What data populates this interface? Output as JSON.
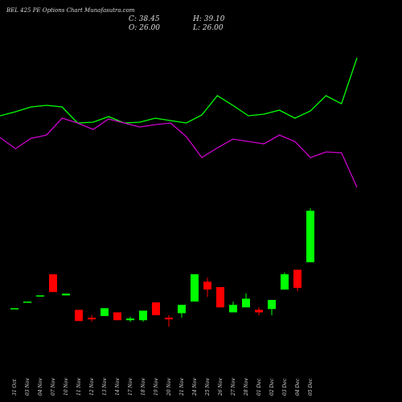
{
  "chart_data": {
    "type": "candlestick",
    "title": "BEL 425 PE Options Chart Munafasutra.com",
    "ohlc_labels": [
      "C: 38.45",
      "H: 39.10",
      "O: 26.00",
      "L: 26.00"
    ],
    "categories": [
      "31 Oct",
      "03 Nov",
      "04 Nov",
      "07 Nov",
      "10 Nov",
      "11 Nov",
      "12 Nov",
      "13 Nov",
      "14 Nov",
      "17 Nov",
      "18 Nov",
      "19 Nov",
      "20 Nov",
      "21 Nov",
      "24 Nov",
      "25 Nov",
      "26 Nov",
      "27 Nov",
      "28 Nov",
      "01 Dec",
      "02 Dec",
      "03 Dec",
      "04 Dec",
      "05 Dec"
    ],
    "open": [
      14.9,
      16.5,
      18.0,
      23.1,
      18.0,
      14.5,
      12.6,
      13.0,
      13.9,
      12.0,
      12.0,
      16.3,
      12.6,
      13.7,
      16.5,
      21.3,
      20.0,
      13.9,
      15.1,
      14.5,
      14.7,
      19.4,
      24.2,
      26.0
    ],
    "high": [
      14.9,
      16.5,
      18.0,
      23.1,
      18.4,
      14.5,
      13.2,
      14.9,
      13.9,
      12.8,
      14.3,
      16.3,
      13.2,
      15.7,
      23.1,
      22.3,
      20.0,
      16.5,
      18.5,
      15.1,
      16.9,
      23.5,
      24.2,
      39.1
    ],
    "low": [
      14.9,
      16.5,
      18.0,
      18.8,
      18.0,
      11.8,
      11.6,
      13.0,
      12.0,
      11.6,
      11.6,
      13.2,
      10.4,
      12.6,
      16.5,
      17.6,
      15.1,
      13.9,
      15.1,
      13.2,
      13.2,
      19.4,
      19.0,
      26.0
    ],
    "close": [
      14.9,
      16.5,
      18.0,
      18.8,
      18.4,
      11.8,
      12.2,
      14.9,
      12.0,
      12.4,
      14.3,
      13.2,
      12.2,
      15.7,
      23.1,
      19.4,
      15.1,
      15.7,
      17.2,
      13.9,
      16.9,
      23.1,
      19.8,
      38.45
    ],
    "ylim": [
      0,
      41
    ],
    "up_color": "#00ff00",
    "down_color": "#ff0000",
    "lines": {
      "ylim": [
        0,
        250
      ],
      "series": [
        {
          "color": "#00ff00",
          "values": [
            106,
            111,
            117,
            119,
            117,
            97,
            98,
            105,
            97,
            98,
            103,
            100,
            97,
            107,
            131,
            119,
            106,
            108,
            113,
            103,
            112,
            131,
            121,
            178
          ]
        },
        {
          "color": "#cc00cc",
          "values": [
            79,
            65,
            78,
            82,
            103,
            97,
            89,
            102,
            97,
            92,
            95,
            97,
            80,
            54,
            66,
            77,
            74,
            71,
            82,
            74,
            54,
            61,
            60,
            17
          ]
        }
      ]
    }
  }
}
